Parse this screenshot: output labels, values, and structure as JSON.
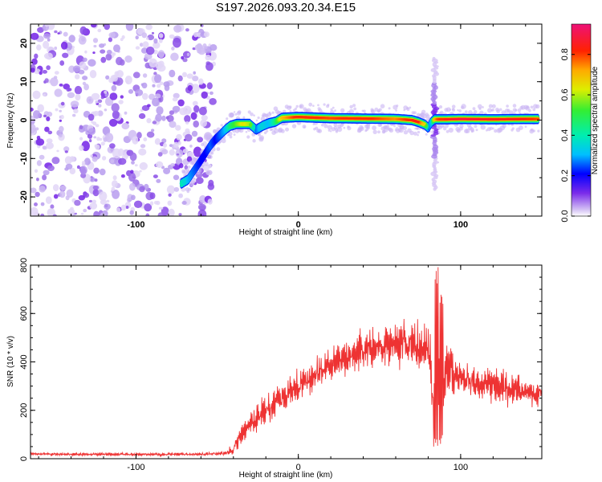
{
  "title": "S197.2026.093.20.34.E15",
  "chart_data": [
    {
      "type": "heatmap",
      "name": "spectrogram",
      "xlabel": "Height of straight line (km)",
      "ylabel": "Frequency (Hz)",
      "xlim": [
        -165,
        150
      ],
      "ylim": [
        -25,
        25
      ],
      "xticks": [
        -100,
        0,
        100
      ],
      "yticks": [
        -20,
        -10,
        0,
        10,
        20
      ],
      "colorbar": {
        "label": "Normalized spectral amplitude",
        "range": [
          0,
          0.95
        ],
        "ticks": [
          "0.0",
          "0.2",
          "0.4",
          "0.6",
          "0.8"
        ]
      },
      "noise_region_x": [
        -165,
        -52
      ],
      "ridge": {
        "x": [
          -72,
          -68,
          -64,
          -60,
          -57,
          -54,
          -51,
          -48,
          -45,
          -42,
          -38,
          -34,
          -30,
          -26,
          -22,
          -18,
          -14,
          -10,
          0,
          20,
          40,
          60,
          70,
          74,
          78,
          80,
          82,
          84,
          86,
          90,
          100,
          120,
          140,
          148
        ],
        "freq": [
          -16.5,
          -15.5,
          -13,
          -10.5,
          -8.5,
          -6.5,
          -5,
          -3.8,
          -2.5,
          -1.5,
          -1,
          -1,
          -1,
          -2.5,
          -1.5,
          -0.8,
          -0.4,
          0.6,
          0.8,
          0.5,
          0.4,
          0.3,
          0.0,
          -0.5,
          -1.2,
          -2,
          -0.5,
          0.2,
          0.2,
          0.2,
          0.3,
          0.2,
          0.3,
          0.3
        ],
        "amplitude": [
          0.45,
          0.35,
          0.3,
          0.25,
          0.25,
          0.3,
          0.25,
          0.3,
          0.35,
          0.5,
          0.6,
          0.7,
          0.65,
          0.3,
          0.4,
          0.35,
          0.5,
          0.75,
          0.9,
          0.85,
          0.9,
          0.8,
          0.9,
          0.9,
          0.7,
          0.3,
          0.35,
          0.75,
          0.85,
          0.9,
          0.95,
          0.92,
          0.9,
          0.85
        ]
      },
      "spike": {
        "x": 84,
        "freq_range": [
          -18,
          16
        ]
      }
    },
    {
      "type": "line",
      "name": "snr",
      "xlabel": "Height of straight line (km)",
      "ylabel": "SNR (10 * v/v)",
      "xlim": [
        -165,
        150
      ],
      "ylim": [
        0,
        800
      ],
      "xticks": [
        -100,
        0,
        100
      ],
      "yticks": [
        0,
        200,
        400,
        600,
        800
      ],
      "color": "#ee3333",
      "series": [
        {
          "name": "SNR trend",
          "x": [
            -165,
            -140,
            -100,
            -60,
            -45,
            -40,
            -35,
            -30,
            -20,
            -10,
            0,
            10,
            20,
            30,
            40,
            50,
            60,
            70,
            80,
            84,
            88,
            95,
            100,
            110,
            120,
            130,
            140,
            150
          ],
          "y": [
            20,
            18,
            18,
            18,
            22,
            40,
            100,
            140,
            200,
            250,
            300,
            345,
            385,
            420,
            455,
            465,
            475,
            470,
            440,
            200,
            340,
            360,
            330,
            310,
            305,
            290,
            280,
            270
          ],
          "noise": [
            4,
            4,
            4,
            4,
            5,
            15,
            30,
            35,
            40,
            45,
            45,
            45,
            45,
            50,
            55,
            55,
            60,
            65,
            70,
            150,
            100,
            60,
            50,
            45,
            45,
            45,
            40,
            40
          ]
        }
      ],
      "highlights": [
        {
          "x": 85,
          "peak": 800,
          "trough": 50
        },
        {
          "x": 88,
          "peak": 720,
          "trough": 60
        }
      ]
    }
  ]
}
